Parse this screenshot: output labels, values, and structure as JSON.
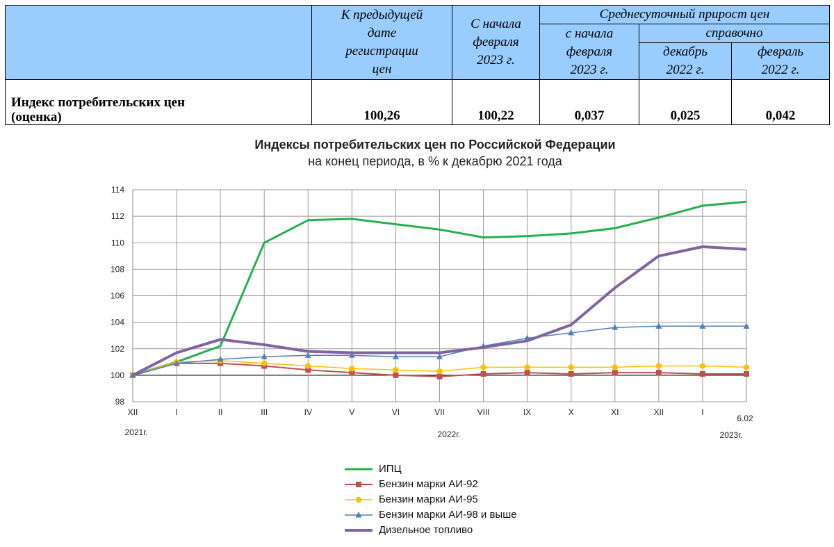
{
  "table": {
    "headers": {
      "col2": [
        "К предыдущей",
        "дате",
        "регистрации",
        "цен"
      ],
      "col3": [
        "С начала",
        "февраля",
        "2023 г."
      ],
      "avg_group": "Среднесуточный прирост цен",
      "col4": [
        "с начала",
        "февраля",
        "2023 г."
      ],
      "ref_group": "справочно",
      "col5": [
        "декабрь",
        "2022 г."
      ],
      "col6": [
        "февраль",
        "2022 г."
      ]
    },
    "row": {
      "label_line1": "Индекс потребительских цен",
      "label_line2": "(оценка)",
      "values": [
        "100,26",
        "100,22",
        "0,037",
        "0,025",
        "0,042"
      ]
    }
  },
  "chart_data": {
    "type": "line",
    "title": "Индексы потребительских цен по Российской Федерации",
    "subtitle": "на конец периода, в % к декабрю 2021 года",
    "categories": [
      "XII",
      "I",
      "II",
      "III",
      "IV",
      "V",
      "VI",
      "VII",
      "VIII",
      "IX",
      "X",
      "XI",
      "XII",
      "I",
      "6.02"
    ],
    "year_labels": [
      "2021г.",
      "2022г.",
      "2023г."
    ],
    "ylim": [
      98,
      114
    ],
    "yticks": [
      98,
      100,
      102,
      104,
      106,
      108,
      110,
      112,
      114
    ],
    "grid": true,
    "series": [
      {
        "name": "ИПЦ",
        "color": "#22b14c",
        "marker": "none",
        "width": 3,
        "values": [
          100.0,
          101.0,
          102.2,
          110.0,
          111.7,
          111.8,
          111.4,
          111.0,
          110.4,
          110.5,
          110.7,
          111.1,
          111.9,
          112.8,
          113.1
        ]
      },
      {
        "name": "Бензин марки АИ-92",
        "color": "#c0504d",
        "marker": "square",
        "width": 2,
        "values": [
          100.0,
          100.9,
          100.9,
          100.7,
          100.4,
          100.2,
          100.0,
          99.9,
          100.1,
          100.2,
          100.1,
          100.2,
          100.2,
          100.1,
          100.1
        ]
      },
      {
        "name": "Бензин марки АИ-95",
        "color": "#ffc000",
        "marker": "circle",
        "width": 1.5,
        "values": [
          100.0,
          101.0,
          101.1,
          100.9,
          100.7,
          100.5,
          100.4,
          100.3,
          100.6,
          100.6,
          100.6,
          100.6,
          100.7,
          100.7,
          100.6
        ]
      },
      {
        "name": "Бензин марки АИ-98 и выше",
        "color": "#4f81bd",
        "marker": "triangle",
        "width": 1.5,
        "values": [
          100.0,
          100.9,
          101.2,
          101.4,
          101.5,
          101.5,
          101.4,
          101.4,
          102.2,
          102.8,
          103.2,
          103.6,
          103.7,
          103.7,
          103.7
        ]
      },
      {
        "name": "Дизельное топливо",
        "color": "#8064a2",
        "marker": "none",
        "width": 4,
        "values": [
          100.0,
          101.7,
          102.7,
          102.3,
          101.8,
          101.7,
          101.7,
          101.7,
          102.1,
          102.6,
          103.8,
          106.6,
          109.0,
          109.7,
          109.5
        ]
      }
    ]
  }
}
